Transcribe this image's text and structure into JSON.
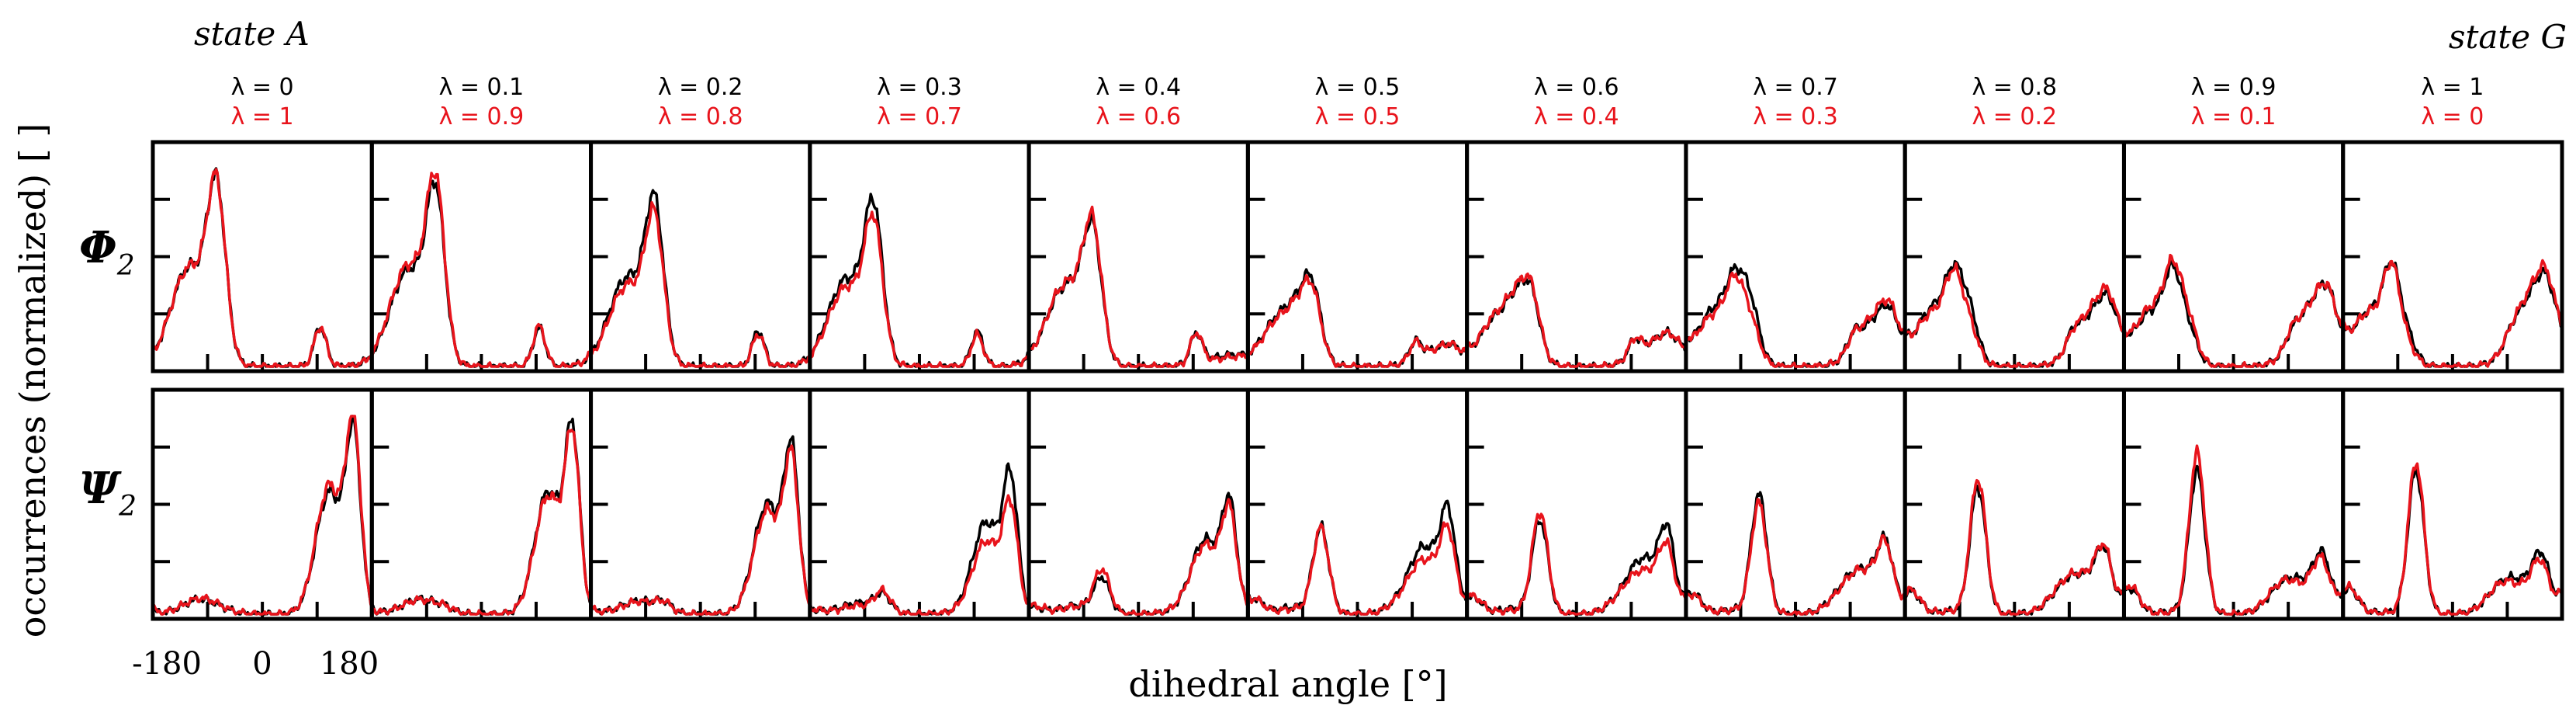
{
  "chart_data": {
    "type": "line",
    "title_left": "state A",
    "title_right": "state G",
    "ylabel": "occurrences (normalized) [ ]",
    "xlabel": "dihedral angle [°]",
    "x_ticks": [
      "-180",
      "0",
      "180"
    ],
    "x_range": [
      -180,
      180
    ],
    "rows": [
      {
        "id": "phi",
        "label": "Φ",
        "subscript": "2"
      },
      {
        "id": "psi",
        "label": "Ψ",
        "subscript": "2"
      }
    ],
    "lambda_labels_black": [
      "λ = 0",
      "λ = 0.1",
      "λ = 0.2",
      "λ = 0.3",
      "λ = 0.4",
      "λ = 0.5",
      "λ = 0.6",
      "λ = 0.7",
      "λ = 0.8",
      "λ = 0.9",
      "λ = 1"
    ],
    "lambda_labels_red": [
      "λ = 1",
      "λ = 0.9",
      "λ = 0.8",
      "λ = 0.7",
      "λ = 0.6",
      "λ = 0.5",
      "λ = 0.4",
      "λ = 0.3",
      "λ = 0.2",
      "λ = 0.1",
      "λ = 0"
    ],
    "series_colors": {
      "forward": "#000000",
      "reverse": "#e8141c"
    },
    "peak_shapes": {
      "phi_main": [
        [
          -120,
          30,
          0.5
        ],
        [
          -75,
          15,
          0.8
        ],
        [
          95,
          10,
          0.2
        ]
      ],
      "phi_end": [
        [
          -140,
          25,
          0.25
        ],
        [
          -100,
          14,
          0.45
        ],
        [
          130,
          30,
          0.4
        ],
        [
          155,
          15,
          0.25
        ]
      ],
      "psi_main": [
        [
          -100,
          30,
          0.08
        ],
        [
          110,
          22,
          0.65
        ],
        [
          150,
          12,
          0.9
        ]
      ],
      "psi_end": [
        [
          -170,
          15,
          0.15
        ],
        [
          -60,
          13,
          0.85
        ],
        [
          80,
          25,
          0.15
        ],
        [
          140,
          15,
          0.2
        ]
      ]
    },
    "panels": {
      "phi": {
        "black": [
          {
            "main": 1.0,
            "end": 0.0
          },
          {
            "main": 0.97,
            "end": 0.0
          },
          {
            "main": 0.9,
            "end": 0.0
          },
          {
            "main": 0.88,
            "end": 0.0
          },
          {
            "main": 0.75,
            "end": 0.1
          },
          {
            "main": 0.45,
            "end": 0.2
          },
          {
            "main": 0.4,
            "end": 0.3
          },
          {
            "main": 0.35,
            "end": 0.55
          },
          {
            "main": 0.3,
            "end": 0.65
          },
          {
            "main": 0.2,
            "end": 0.75
          },
          {
            "main": 0.15,
            "end": 0.85
          }
        ],
        "red": [
          {
            "main": 1.0,
            "end": 0.0
          },
          {
            "main": 1.02,
            "end": 0.0
          },
          {
            "main": 0.82,
            "end": 0.0
          },
          {
            "main": 0.8,
            "end": 0.0
          },
          {
            "main": 0.78,
            "end": 0.08
          },
          {
            "main": 0.42,
            "end": 0.2
          },
          {
            "main": 0.42,
            "end": 0.3
          },
          {
            "main": 0.25,
            "end": 0.6
          },
          {
            "main": 0.22,
            "end": 0.7
          },
          {
            "main": 0.25,
            "end": 0.75
          },
          {
            "main": 0.1,
            "end": 0.9
          }
        ]
      },
      "psi": {
        "black": [
          {
            "main": 0.95,
            "end": 0.0
          },
          {
            "main": 0.95,
            "end": 0.02
          },
          {
            "main": 0.85,
            "end": 0.05
          },
          {
            "main": 0.7,
            "end": 0.1
          },
          {
            "main": 0.55,
            "end": 0.2
          },
          {
            "main": 0.45,
            "end": 0.5
          },
          {
            "main": 0.35,
            "end": 0.55
          },
          {
            "main": 0.25,
            "end": 0.7
          },
          {
            "main": 0.2,
            "end": 0.75
          },
          {
            "main": 0.15,
            "end": 0.85
          },
          {
            "main": 0.15,
            "end": 0.85
          }
        ],
        "red": [
          {
            "main": 1.0,
            "end": 0.0
          },
          {
            "main": 0.92,
            "end": 0.02
          },
          {
            "main": 0.8,
            "end": 0.05
          },
          {
            "main": 0.55,
            "end": 0.12
          },
          {
            "main": 0.5,
            "end": 0.25
          },
          {
            "main": 0.35,
            "end": 0.5
          },
          {
            "main": 0.25,
            "end": 0.6
          },
          {
            "main": 0.25,
            "end": 0.65
          },
          {
            "main": 0.2,
            "end": 0.8
          },
          {
            "main": 0.1,
            "end": 0.95
          },
          {
            "main": 0.1,
            "end": 0.9
          }
        ]
      }
    }
  }
}
